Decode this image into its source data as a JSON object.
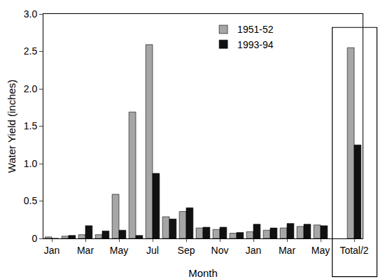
{
  "chart_data": {
    "type": "bar",
    "x_label": "Month",
    "y_label": "Water Yield (inches)",
    "categories": [
      "Jan",
      null,
      "Mar",
      null,
      "May",
      null,
      "Jul",
      null,
      "Sep",
      null,
      "Nov",
      null,
      "Jan",
      null,
      "Mar",
      null,
      "May",
      null,
      "Total/2"
    ],
    "series": [
      {
        "name": "1951-52",
        "color": "#a6a6a6",
        "values": [
          0.02,
          0.03,
          0.05,
          0.05,
          0.59,
          1.69,
          2.59,
          0.29,
          0.36,
          0.14,
          0.12,
          0.07,
          0.09,
          0.11,
          0.14,
          0.16,
          0.18,
          null,
          2.55
        ]
      },
      {
        "name": "1993-94",
        "color": "#111111",
        "values": [
          0.0,
          0.04,
          0.17,
          0.1,
          0.11,
          0.04,
          0.87,
          0.26,
          0.41,
          0.15,
          0.15,
          0.08,
          0.19,
          0.14,
          0.2,
          0.19,
          0.17,
          null,
          1.25
        ]
      }
    ],
    "ylim": [
      0,
      3
    ],
    "yticks": [
      0,
      0.5,
      {
        "value": 1,
        "label": "1.0"
      },
      1.5,
      {
        "value": 2,
        "label": "2.0"
      },
      2.5,
      {
        "value": 3,
        "label": "3.0"
      }
    ],
    "grid": false,
    "legend": "top"
  }
}
